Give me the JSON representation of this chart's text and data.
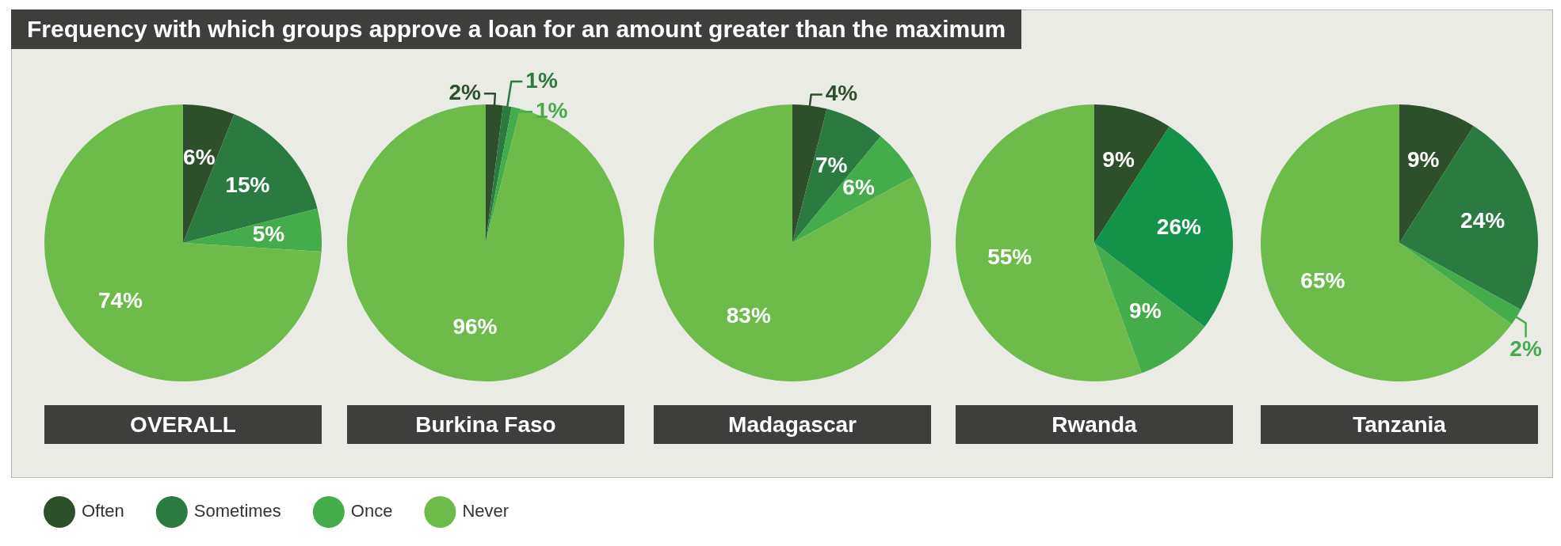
{
  "chart_data": [
    {
      "type": "pie",
      "title": "Frequency with which groups approve a loan for an amount greater than the maximum",
      "xlabel": "OVERALL",
      "categories": [
        "Often",
        "Sometimes",
        "Once",
        "Never"
      ],
      "values": [
        6,
        15,
        5,
        74
      ],
      "value_labels": [
        "6%",
        "15%",
        "5%",
        "74%"
      ],
      "colors": [
        "#2e4f2b",
        "#2b7b41",
        "#45ac4b",
        "#6dbb4b"
      ],
      "legend": "bottom"
    },
    {
      "type": "pie",
      "xlabel": "Burkina Faso",
      "categories": [
        null,
        null,
        null,
        null
      ],
      "values": [
        2,
        1,
        1,
        96
      ],
      "value_labels": [
        "2%",
        "1%",
        "1%",
        "96%"
      ],
      "colors": [
        "#2e4f2b",
        "#2b7b41",
        "#45ac4b",
        "#6dbb4b"
      ]
    },
    {
      "type": "pie",
      "xlabel": "Madagascar",
      "categories": [
        null,
        null,
        null,
        null
      ],
      "values": [
        4,
        7,
        6,
        83
      ],
      "value_labels": [
        "4%",
        "7%",
        "6%",
        "83%"
      ],
      "colors": [
        "#2e4f2b",
        "#2b7b41",
        "#45ac4b",
        "#6dbb4b"
      ]
    },
    {
      "type": "pie",
      "xlabel": "Rwanda",
      "categories": [
        null,
        null,
        null,
        null
      ],
      "values": [
        9,
        26,
        9,
        55
      ],
      "value_labels": [
        "9%",
        "26%",
        "9%",
        "55%"
      ],
      "colors": [
        "#2e4f2b",
        "#13934a",
        "#45ac4b",
        "#6dbb4b"
      ]
    },
    {
      "type": "pie",
      "xlabel": "Tanzania",
      "categories": [
        null,
        null,
        null,
        null
      ],
      "values": [
        9,
        24,
        2,
        65
      ],
      "value_labels": [
        "9%",
        "24%",
        "2%",
        "65%"
      ],
      "colors": [
        "#2e4f2b",
        "#2b7b41",
        "#45ac4b",
        "#6dbb4b"
      ]
    }
  ]
}
